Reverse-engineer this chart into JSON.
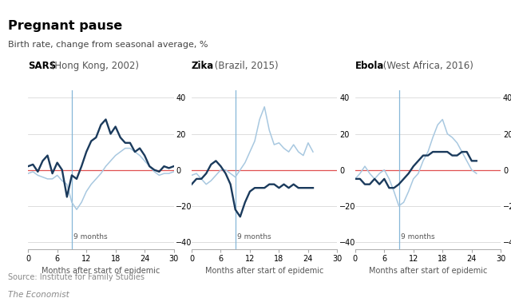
{
  "title": "Pregnant pause",
  "subtitle": "Birth rate, change from seasonal average, %",
  "source": "Source: Institute for Family Studies",
  "branding": "The Economist",
  "background_color": "#ffffff",
  "top_bar_color": "#E3120B",
  "dark_blue": "#1a3a5c",
  "light_blue": "#a8c8e0",
  "red_line": "#e05050",
  "vline_color": "#7ab0d4",
  "panels": [
    {
      "title_bold": "SARS",
      "title_normal": " (Hong Kong, 2002)",
      "dark_y": [
        2,
        3,
        -1,
        5,
        8,
        -2,
        4,
        0,
        -15,
        -3,
        -5,
        2,
        10,
        16,
        18,
        25,
        28,
        20,
        24,
        18,
        15,
        15,
        10,
        12,
        8,
        2,
        0,
        -1,
        2,
        1,
        2
      ],
      "light_y": [
        -2,
        -1,
        -3,
        -4,
        -5,
        -5,
        -3,
        -6,
        -8,
        -18,
        -22,
        -18,
        -12,
        -8,
        -5,
        -2,
        2,
        5,
        8,
        10,
        12,
        12,
        10,
        8,
        5,
        2,
        -1,
        -3,
        -2,
        -2,
        -1
      ],
      "x_end": 30
    },
    {
      "title_bold": "Zika",
      "title_normal": " (Brazil, 2015)",
      "dark_y": [
        -8,
        -5,
        -5,
        -2,
        3,
        5,
        2,
        -2,
        -8,
        -22,
        -26,
        -18,
        -12,
        -10,
        -10,
        -10,
        -8,
        -8,
        -10,
        -8,
        -10,
        -8,
        -10,
        -10,
        -10,
        -10
      ],
      "light_y": [
        -3,
        -2,
        -5,
        -8,
        -6,
        -3,
        0,
        0,
        -2,
        -4,
        0,
        4,
        10,
        16,
        28,
        35,
        22,
        14,
        15,
        12,
        10,
        14,
        10,
        8,
        15,
        10
      ],
      "x_end": 25
    },
    {
      "title_bold": "Ebola",
      "title_normal": " (West Africa, 2016)",
      "dark_y": [
        -5,
        -5,
        -8,
        -8,
        -5,
        -8,
        -5,
        -10,
        -10,
        -8,
        -5,
        -2,
        2,
        5,
        8,
        8,
        10,
        10,
        10,
        10,
        8,
        8,
        10,
        10,
        5,
        5
      ],
      "light_y": [
        -5,
        -2,
        2,
        -2,
        -5,
        -2,
        0,
        -5,
        -12,
        -20,
        -18,
        -12,
        -5,
        -2,
        5,
        10,
        18,
        25,
        28,
        20,
        18,
        15,
        10,
        5,
        0,
        -2
      ],
      "x_end": 25
    }
  ],
  "ylim": [
    -44,
    44
  ],
  "xlim": [
    0,
    30
  ],
  "yticks": [
    -40,
    -20,
    0,
    20,
    40
  ],
  "xticks": [
    0,
    6,
    12,
    18,
    24,
    30
  ],
  "vline_x": 9
}
